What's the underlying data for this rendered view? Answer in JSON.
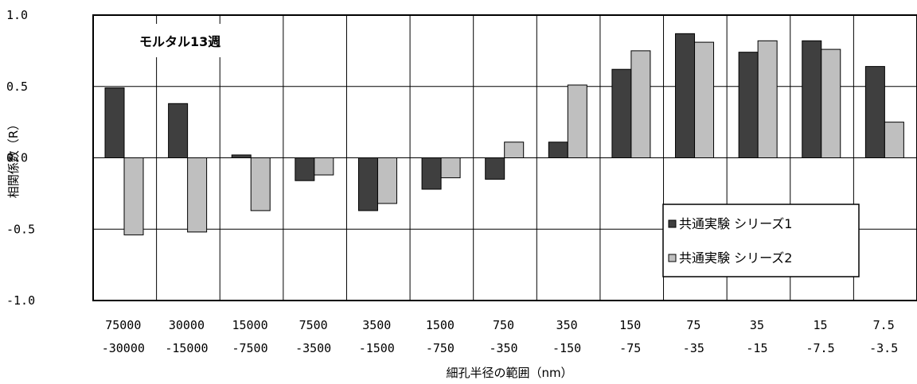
{
  "chart_data": {
    "type": "bar",
    "title": "",
    "annotation": "モルタル13週",
    "xlabel": "細孔半径の範囲（nm）",
    "ylabel": "相関係数（R）",
    "ylim": [
      -1.0,
      1.0
    ],
    "yticks": [
      "1.0",
      "0.5",
      "0.0",
      "-0.5",
      "-1.0"
    ],
    "ytick_values": [
      1.0,
      0.5,
      0.0,
      -0.5,
      -1.0
    ],
    "grid": true,
    "legend_position": "lower-right",
    "categories": [
      {
        "top": "75000",
        "bottom": "-30000"
      },
      {
        "top": "30000",
        "bottom": "-15000"
      },
      {
        "top": "15000",
        "bottom": "-7500"
      },
      {
        "top": "7500",
        "bottom": "-3500"
      },
      {
        "top": "3500",
        "bottom": "-1500"
      },
      {
        "top": "1500",
        "bottom": "-750"
      },
      {
        "top": "750",
        "bottom": "-350"
      },
      {
        "top": "350",
        "bottom": "-150"
      },
      {
        "top": "150",
        "bottom": "-75"
      },
      {
        "top": "75",
        "bottom": "-35"
      },
      {
        "top": "35",
        "bottom": "-15"
      },
      {
        "top": "15",
        "bottom": "-7.5"
      },
      {
        "top": "7.5",
        "bottom": "-3.5"
      }
    ],
    "series": [
      {
        "name": "共通実験 シリーズ1",
        "color": "#3f3f3f",
        "values": [
          0.49,
          0.38,
          0.02,
          -0.16,
          -0.37,
          -0.22,
          -0.15,
          0.11,
          0.62,
          0.87,
          0.74,
          0.82,
          0.64
        ]
      },
      {
        "name": "共通実験 シリーズ2",
        "color": "#bfbfbf",
        "values": [
          -0.54,
          -0.52,
          -0.37,
          -0.12,
          -0.32,
          -0.14,
          0.11,
          0.51,
          0.75,
          0.81,
          0.82,
          0.76,
          0.25
        ]
      }
    ]
  }
}
